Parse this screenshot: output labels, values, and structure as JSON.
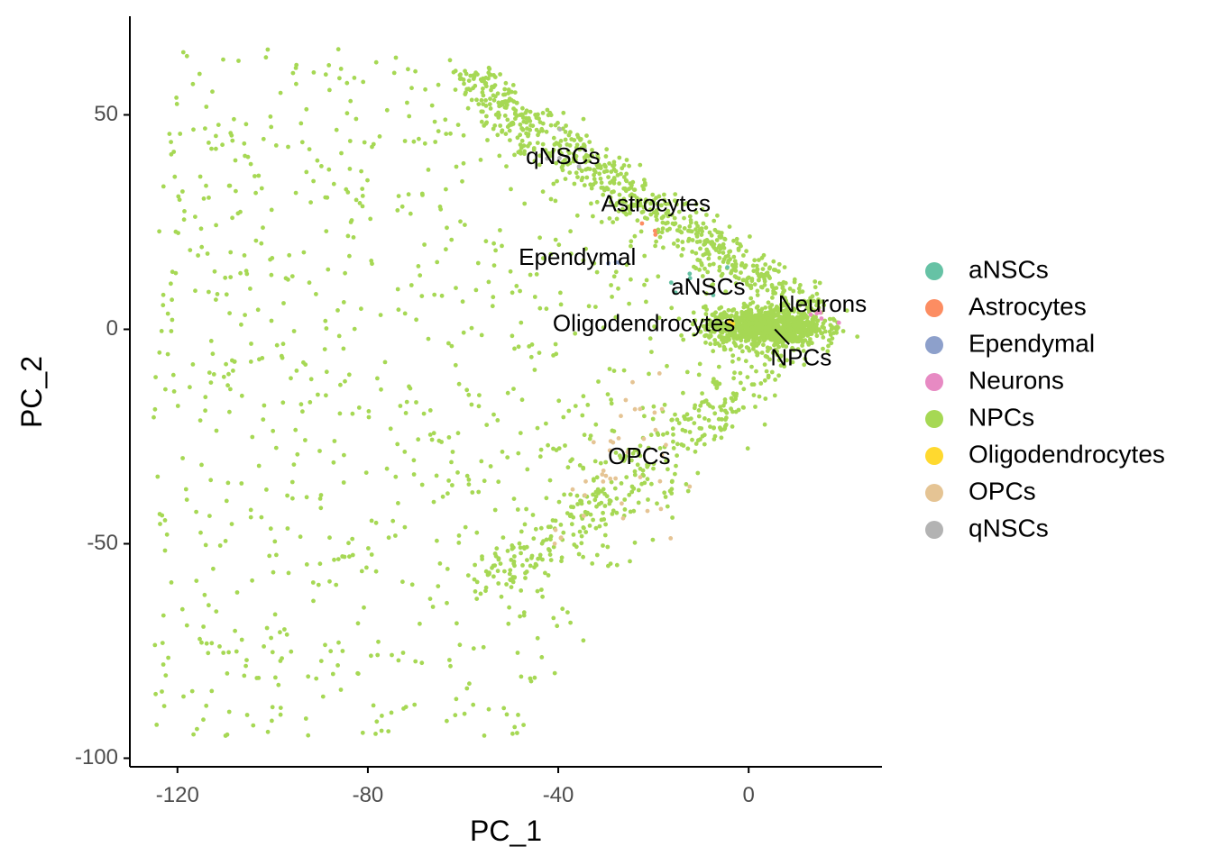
{
  "chart_data": {
    "type": "scatter",
    "xlabel": "PC_1",
    "ylabel": "PC_2",
    "xlim": [
      -130,
      28
    ],
    "ylim": [
      -102,
      73
    ],
    "x_ticks": [
      -120,
      -80,
      -40,
      0
    ],
    "x_tick_labels": [
      "-120",
      "-80",
      "-40",
      "0"
    ],
    "y_ticks": [
      -100,
      -50,
      0,
      50
    ],
    "y_tick_labels": [
      "-100",
      "-50",
      "0",
      "50"
    ],
    "grid": false,
    "legend_position": "right",
    "series": [
      {
        "name": "aNSCs",
        "color": "#66C2A5"
      },
      {
        "name": "Astrocytes",
        "color": "#FC8D62"
      },
      {
        "name": "Ependymal",
        "color": "#8DA0CB"
      },
      {
        "name": "Neurons",
        "color": "#E78AC3"
      },
      {
        "name": "NPCs",
        "color": "#A6D854"
      },
      {
        "name": "Oligodendrocytes",
        "color": "#FFD92F"
      },
      {
        "name": "OPCs",
        "color": "#E5C494"
      },
      {
        "name": "qNSCs",
        "color": "#B3B3B3"
      }
    ],
    "annotations": [
      {
        "text": "qNSCs",
        "x": -39,
        "y": 40
      },
      {
        "text": "Astrocytes",
        "x": -19.5,
        "y": 29
      },
      {
        "text": "Ependymal",
        "x": -36,
        "y": 16.5
      },
      {
        "text": "aNSCs",
        "x": -8.5,
        "y": 9.5
      },
      {
        "text": "Oligodendrocytes",
        "x": -22,
        "y": 1
      },
      {
        "text": "Neurons",
        "x": 15.5,
        "y": 5.5
      },
      {
        "text": "NPCs",
        "x": 11,
        "y": -7
      },
      {
        "text": "OPCs",
        "x": -23,
        "y": -30
      }
    ]
  }
}
